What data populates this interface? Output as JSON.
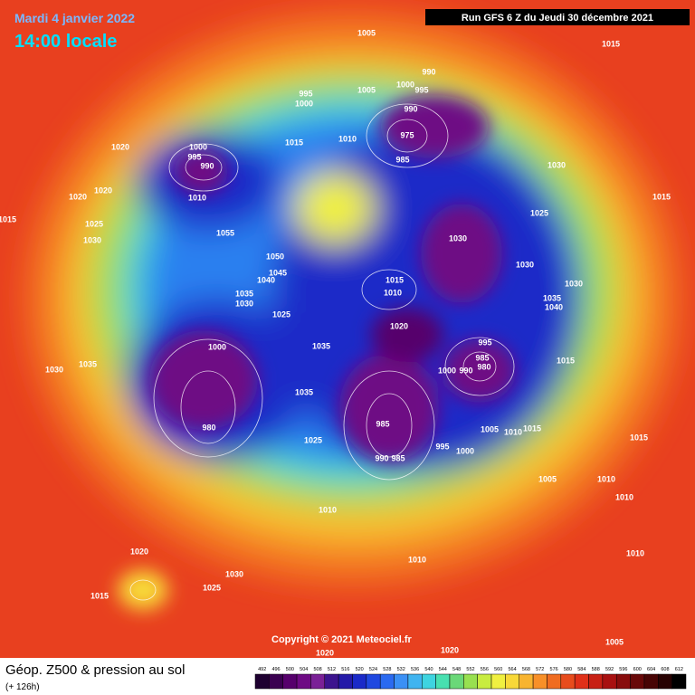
{
  "header": {
    "date": "Mardi 4 janvier 2022",
    "time": "14:00 locale",
    "run": "Run GFS 6 Z du Jeudi 30 décembre 2021",
    "copyright": "Copyright © 2021 Meteociel.fr"
  },
  "footer": {
    "title": "Géop. Z500 & pression au sol",
    "lead": "(+ 126h)"
  },
  "legend": {
    "values": [
      492,
      496,
      500,
      504,
      508,
      512,
      516,
      520,
      524,
      528,
      532,
      536,
      540,
      544,
      548,
      552,
      556,
      560,
      564,
      568,
      572,
      576,
      580,
      584,
      588,
      592,
      596,
      600,
      604,
      608,
      612
    ],
    "colors": [
      "#1e0030",
      "#3a0050",
      "#56006c",
      "#6e0a84",
      "#7a2096",
      "#3c148e",
      "#241aa8",
      "#1a2ac8",
      "#1f48e0",
      "#2a6af0",
      "#3a90f5",
      "#40b4f0",
      "#3ed4e0",
      "#48e0b0",
      "#6ad878",
      "#98e050",
      "#c8ec40",
      "#f0f040",
      "#f8d838",
      "#f8b430",
      "#f89028",
      "#f06c20",
      "#e84c1c",
      "#e03018",
      "#c82014",
      "#a81010",
      "#880c0c",
      "#680808",
      "#480404",
      "#280202",
      "#000000"
    ]
  },
  "isobar_labels": [
    1005,
    1015,
    990,
    1000,
    995,
    1005,
    995,
    1000,
    990,
    1020,
    1000,
    995,
    990,
    1015,
    1010,
    975,
    985,
    1030,
    1010,
    1015,
    1025,
    1030,
    1055,
    1050,
    1045,
    1040,
    1035,
    1030,
    1015,
    1010,
    1030,
    1035,
    1040,
    1030,
    1025,
    1020,
    1000,
    1035,
    995,
    985,
    980,
    990,
    1000,
    1015,
    1035,
    985,
    1025,
    1005,
    1015,
    1010,
    995,
    1000,
    980,
    990,
    985,
    1005,
    1010,
    1010,
    1010,
    1015,
    1020,
    1030,
    1025,
    1015,
    1010,
    1030,
    1035,
    1020,
    1025,
    1030,
    1020,
    1015,
    1010,
    1005,
    1020,
    1020
  ]
}
